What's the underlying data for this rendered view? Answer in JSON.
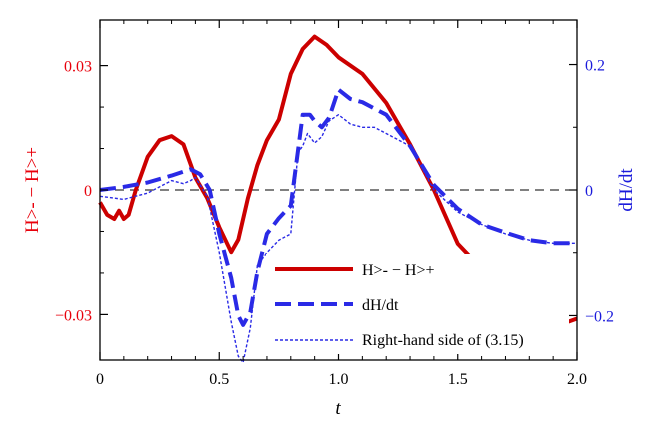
{
  "chart_data": {
    "type": "line",
    "xlabel": "t",
    "ylabel_left": "H>- − H>+",
    "ylabel_right": "dH/dt",
    "x_range": [
      0,
      2.0
    ],
    "y_left_range": [
      -0.041,
      0.041
    ],
    "y_right_range": [
      -0.271,
      0.271
    ],
    "x_ticks": [
      0,
      0.5,
      1.0,
      1.5,
      2.0
    ],
    "x_tick_labels": [
      "0",
      "0.5",
      "1.0",
      "1.5",
      "2.0"
    ],
    "y_left_ticks": [
      0.03,
      0,
      -0.03
    ],
    "y_left_tick_labels": [
      "0.03",
      "0",
      "−0.03"
    ],
    "y_right_ticks": [
      0.2,
      0,
      -0.2
    ],
    "y_right_tick_labels": [
      "0.2",
      "0",
      "−0.2"
    ],
    "legend_position": "bottom-right",
    "zero_line": true,
    "colors": {
      "left_axis": "#e8000b",
      "right_axis": "#1a1adb",
      "red_series": "#cc0000",
      "blue_series": "#2a2ae6"
    },
    "series": [
      {
        "name": "H>- − H>+",
        "axis": "left",
        "style": "solid-thick",
        "x": [
          0,
          0.03,
          0.06,
          0.08,
          0.1,
          0.12,
          0.15,
          0.2,
          0.25,
          0.3,
          0.35,
          0.4,
          0.45,
          0.5,
          0.55,
          0.58,
          0.62,
          0.66,
          0.7,
          0.75,
          0.8,
          0.85,
          0.9,
          0.95,
          1.0,
          1.1,
          1.2,
          1.3,
          1.4,
          1.5,
          1.6,
          1.7,
          1.8,
          1.85,
          1.9,
          1.95,
          2.0
        ],
        "y": [
          -0.003,
          -0.006,
          -0.007,
          -0.005,
          -0.007,
          -0.006,
          0.0,
          0.008,
          0.012,
          0.013,
          0.011,
          0.003,
          -0.002,
          -0.009,
          -0.015,
          -0.012,
          -0.002,
          0.006,
          0.012,
          0.017,
          0.028,
          0.034,
          0.037,
          0.035,
          0.032,
          0.028,
          0.021,
          0.011,
          0.0,
          -0.013,
          -0.019,
          -0.024,
          -0.029,
          -0.031,
          -0.032,
          -0.032,
          -0.031
        ]
      },
      {
        "name": "dH/dt",
        "axis": "right",
        "style": "dashed-thick",
        "x": [
          0,
          0.1,
          0.2,
          0.3,
          0.38,
          0.42,
          0.46,
          0.5,
          0.55,
          0.58,
          0.6,
          0.63,
          0.66,
          0.7,
          0.75,
          0.8,
          0.85,
          0.88,
          0.9,
          0.93,
          0.96,
          1.0,
          1.05,
          1.1,
          1.15,
          1.2,
          1.3,
          1.4,
          1.5,
          1.6,
          1.7,
          1.8,
          1.9,
          2.0
        ],
        "y": [
          0.0,
          0.005,
          0.012,
          0.023,
          0.033,
          0.025,
          0.0,
          -0.07,
          -0.14,
          -0.2,
          -0.215,
          -0.195,
          -0.13,
          -0.07,
          -0.045,
          -0.025,
          0.12,
          0.12,
          0.11,
          0.1,
          0.115,
          0.16,
          0.145,
          0.14,
          0.13,
          0.12,
          0.07,
          0.008,
          -0.03,
          -0.055,
          -0.068,
          -0.08,
          -0.085,
          -0.085
        ]
      },
      {
        "name": "Right-hand side of (3.15)",
        "axis": "right",
        "style": "dotted-thin",
        "x": [
          0,
          0.1,
          0.2,
          0.3,
          0.35,
          0.38,
          0.4,
          0.45,
          0.5,
          0.55,
          0.58,
          0.6,
          0.63,
          0.66,
          0.7,
          0.75,
          0.8,
          0.83,
          0.85,
          0.87,
          0.9,
          0.93,
          0.96,
          1.0,
          1.05,
          1.1,
          1.15,
          1.2,
          1.3,
          1.4,
          1.5,
          1.6,
          1.7,
          1.8,
          1.9,
          2.0
        ],
        "y": [
          -0.01,
          -0.015,
          -0.005,
          0.015,
          0.01,
          0.015,
          0.02,
          -0.01,
          -0.1,
          -0.21,
          -0.265,
          -0.275,
          -0.22,
          -0.12,
          -0.1,
          -0.08,
          -0.07,
          0.06,
          0.07,
          0.09,
          0.075,
          0.085,
          0.11,
          0.12,
          0.105,
          0.1,
          0.1,
          0.09,
          0.07,
          0.0,
          -0.035,
          -0.055,
          -0.07,
          -0.08,
          -0.085,
          -0.085
        ]
      }
    ]
  }
}
